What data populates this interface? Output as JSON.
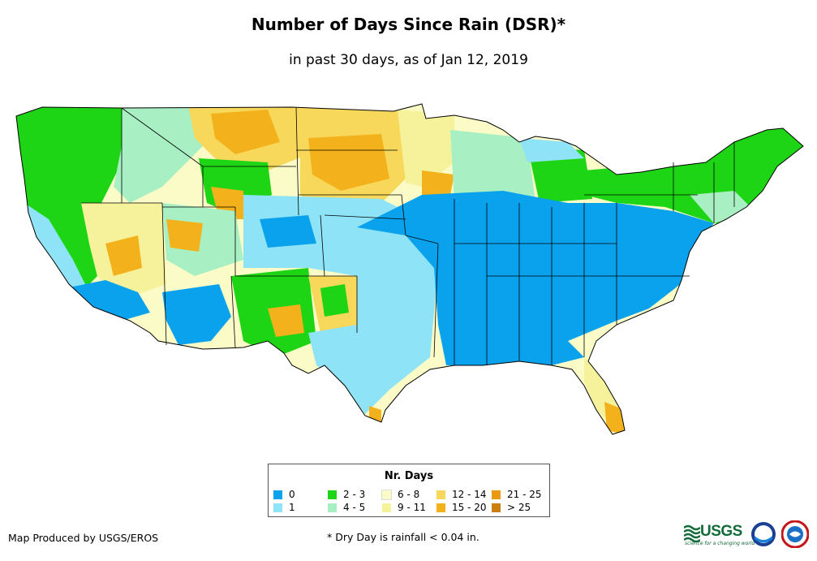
{
  "title": "Number of Days Since Rain (DSR)*",
  "subtitle": "in past 30 days, as of Jan 12, 2019",
  "legend": {
    "title": "Nr. Days",
    "items": [
      {
        "label": "0",
        "color": "#0aa2ec"
      },
      {
        "label": "1",
        "color": "#8fe3f6"
      },
      {
        "label": "2 - 3",
        "color": "#1ed515"
      },
      {
        "label": "4 - 5",
        "color": "#a8efc3"
      },
      {
        "label": "6 - 8",
        "color": "#fbfbc8"
      },
      {
        "label": "9 - 11",
        "color": "#f6f29c"
      },
      {
        "label": "12 - 14",
        "color": "#f7d85b"
      },
      {
        "label": "15 - 20",
        "color": "#f3b21b"
      },
      {
        "label": "21 - 25",
        "color": "#ea9a12"
      },
      {
        "label": "> 25",
        "color": "#cb7f10"
      }
    ]
  },
  "credit": "Map Produced by USGS/EROS",
  "footnote": "* Dry Day is rainfall < 0.04 in.",
  "logos": {
    "usgs": "USGS",
    "usgs_tagline": "science for a changing world",
    "noaa": "noaa-logo",
    "nws": "nws-logo"
  }
}
